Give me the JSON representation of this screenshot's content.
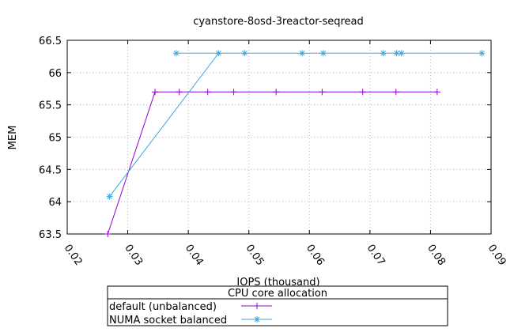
{
  "chart_data": {
    "type": "line",
    "title": "cyanstore-8osd-3reactor-seqread",
    "xlabel": "IOPS (thousand)",
    "ylabel": "MEM",
    "xlim": [
      0.02,
      0.09
    ],
    "ylim": [
      63.5,
      66.5
    ],
    "xticks": [
      0.02,
      0.03,
      0.04,
      0.05,
      0.06,
      0.07,
      0.08,
      0.09
    ],
    "xtick_labels": [
      "0.02",
      "0.03",
      "0.04",
      "0.05",
      "0.06",
      "0.07",
      "0.08",
      "0.09"
    ],
    "yticks": [
      63.5,
      64,
      64.5,
      65,
      65.5,
      66,
      66.5
    ],
    "ytick_labels": [
      "63.5",
      "64",
      "64.5",
      "65",
      "65.5",
      "66",
      "66.5"
    ],
    "grid": true,
    "legend_title": "CPU core allocation",
    "legend_position": "bottom-center",
    "series": [
      {
        "name": "default (unbalanced)",
        "color": "#9400d3",
        "marker": "plus",
        "x": [
          0.0267,
          0.0345,
          0.0385,
          0.0432,
          0.0475,
          0.0545,
          0.0621,
          0.0688,
          0.0743,
          0.0811
        ],
        "y": [
          63.5,
          65.7,
          65.7,
          65.7,
          65.7,
          65.7,
          65.7,
          65.7,
          65.7,
          65.7
        ]
      },
      {
        "name": "NUMA socket balanced",
        "color": "#3ba7e0",
        "marker": "star",
        "x": [
          0.027,
          0.045,
          0.038,
          0.0493,
          0.0588,
          0.0623,
          0.0722,
          0.0744,
          0.0752,
          0.0885
        ],
        "y": [
          64.08,
          66.3,
          66.3,
          66.3,
          66.3,
          66.3,
          66.3,
          66.3,
          66.3,
          66.3
        ]
      }
    ]
  }
}
